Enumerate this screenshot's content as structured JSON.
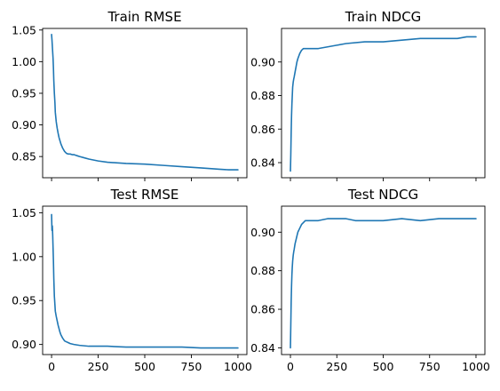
{
  "chart_data": [
    {
      "type": "line",
      "title": "Train RMSE",
      "xlim": [
        -48,
        1048
      ],
      "ylim": [
        0.8165,
        1.0525
      ],
      "xticks": [
        0,
        250,
        500,
        750,
        1000
      ],
      "xtick_labels": [],
      "yticks": [
        0.85,
        0.9,
        0.95,
        1.0,
        1.05
      ],
      "ytick_labels": [
        "0.85",
        "0.90",
        "0.95",
        "1.00",
        "1.05"
      ],
      "color": "#1f77b4",
      "series": [
        {
          "x": [
            0,
            2,
            5,
            8,
            10,
            12,
            15,
            18,
            20,
            25,
            30,
            35,
            40,
            45,
            50,
            60,
            70,
            80,
            90,
            100,
            110,
            120,
            130,
            140,
            150,
            175,
            200,
            250,
            300,
            400,
            500,
            600,
            700,
            800,
            900,
            950,
            1000
          ],
          "y": [
            1.043,
            1.035,
            1.02,
            1.005,
            0.99,
            0.97,
            0.95,
            0.935,
            0.92,
            0.905,
            0.895,
            0.887,
            0.88,
            0.875,
            0.87,
            0.863,
            0.858,
            0.855,
            0.854,
            0.854,
            0.853,
            0.853,
            0.852,
            0.851,
            0.85,
            0.848,
            0.846,
            0.843,
            0.841,
            0.839,
            0.838,
            0.836,
            0.834,
            0.832,
            0.83,
            0.829,
            0.829
          ]
        }
      ]
    },
    {
      "type": "line",
      "title": "Train NDCG",
      "xlim": [
        -48,
        1048
      ],
      "ylim": [
        0.831,
        0.92
      ],
      "xticks": [
        0,
        250,
        500,
        750,
        1000
      ],
      "xtick_labels": [],
      "yticks": [
        0.84,
        0.86,
        0.88,
        0.9
      ],
      "ytick_labels": [
        "0.84",
        "0.86",
        "0.88",
        "0.90"
      ],
      "color": "#1f77b4",
      "series": [
        {
          "x": [
            0,
            2,
            4,
            6,
            8,
            10,
            12,
            15,
            18,
            20,
            25,
            30,
            35,
            40,
            50,
            60,
            70,
            80,
            90,
            100,
            120,
            150,
            200,
            250,
            300,
            400,
            500,
            600,
            700,
            800,
            900,
            950,
            1000
          ],
          "y": [
            0.835,
            0.845,
            0.858,
            0.868,
            0.875,
            0.88,
            0.885,
            0.888,
            0.89,
            0.891,
            0.894,
            0.897,
            0.9,
            0.902,
            0.905,
            0.907,
            0.908,
            0.908,
            0.908,
            0.908,
            0.908,
            0.908,
            0.909,
            0.91,
            0.911,
            0.912,
            0.912,
            0.913,
            0.914,
            0.914,
            0.914,
            0.915,
            0.915
          ]
        }
      ]
    },
    {
      "type": "line",
      "title": "Test RMSE",
      "xlim": [
        -48,
        1048
      ],
      "ylim": [
        0.8885,
        1.0575
      ],
      "xticks": [
        0,
        250,
        500,
        750,
        1000
      ],
      "xtick_labels": [
        "0",
        "250",
        "500",
        "750",
        "1000"
      ],
      "yticks": [
        0.9,
        0.95,
        1.0,
        1.05
      ],
      "ytick_labels": [
        "0.90",
        "0.95",
        "1.00",
        "1.05"
      ],
      "color": "#1f77b4",
      "series": [
        {
          "x": [
            0,
            2,
            4,
            6,
            8,
            10,
            12,
            15,
            18,
            20,
            25,
            30,
            35,
            40,
            45,
            50,
            60,
            70,
            80,
            90,
            100,
            120,
            150,
            200,
            250,
            300,
            400,
            500,
            600,
            700,
            800,
            900,
            1000
          ],
          "y": [
            1.048,
            1.03,
            1.035,
            1.025,
            1.01,
            0.995,
            0.975,
            0.955,
            0.945,
            0.938,
            0.932,
            0.927,
            0.922,
            0.918,
            0.914,
            0.911,
            0.907,
            0.904,
            0.903,
            0.902,
            0.901,
            0.9,
            0.899,
            0.898,
            0.898,
            0.898,
            0.897,
            0.897,
            0.897,
            0.897,
            0.896,
            0.896,
            0.896
          ]
        }
      ]
    },
    {
      "type": "line",
      "title": "Test NDCG",
      "xlim": [
        -48,
        1048
      ],
      "ylim": [
        0.8365,
        0.9135
      ],
      "xticks": [
        0,
        250,
        500,
        750,
        1000
      ],
      "xtick_labels": [
        "0",
        "250",
        "500",
        "750",
        "1000"
      ],
      "yticks": [
        0.84,
        0.86,
        0.88,
        0.9
      ],
      "ytick_labels": [
        "0.84",
        "0.86",
        "0.88",
        "0.90"
      ],
      "color": "#1f77b4",
      "series": [
        {
          "x": [
            0,
            2,
            4,
            6,
            8,
            10,
            12,
            15,
            18,
            20,
            25,
            30,
            35,
            40,
            50,
            60,
            70,
            80,
            90,
            100,
            120,
            150,
            200,
            250,
            300,
            350,
            400,
            500,
            600,
            700,
            800,
            900,
            1000
          ],
          "y": [
            0.84,
            0.852,
            0.864,
            0.872,
            0.878,
            0.882,
            0.885,
            0.888,
            0.89,
            0.891,
            0.894,
            0.896,
            0.898,
            0.9,
            0.902,
            0.904,
            0.905,
            0.906,
            0.906,
            0.906,
            0.906,
            0.906,
            0.907,
            0.907,
            0.907,
            0.906,
            0.906,
            0.906,
            0.907,
            0.906,
            0.907,
            0.907,
            0.907
          ]
        }
      ]
    }
  ]
}
